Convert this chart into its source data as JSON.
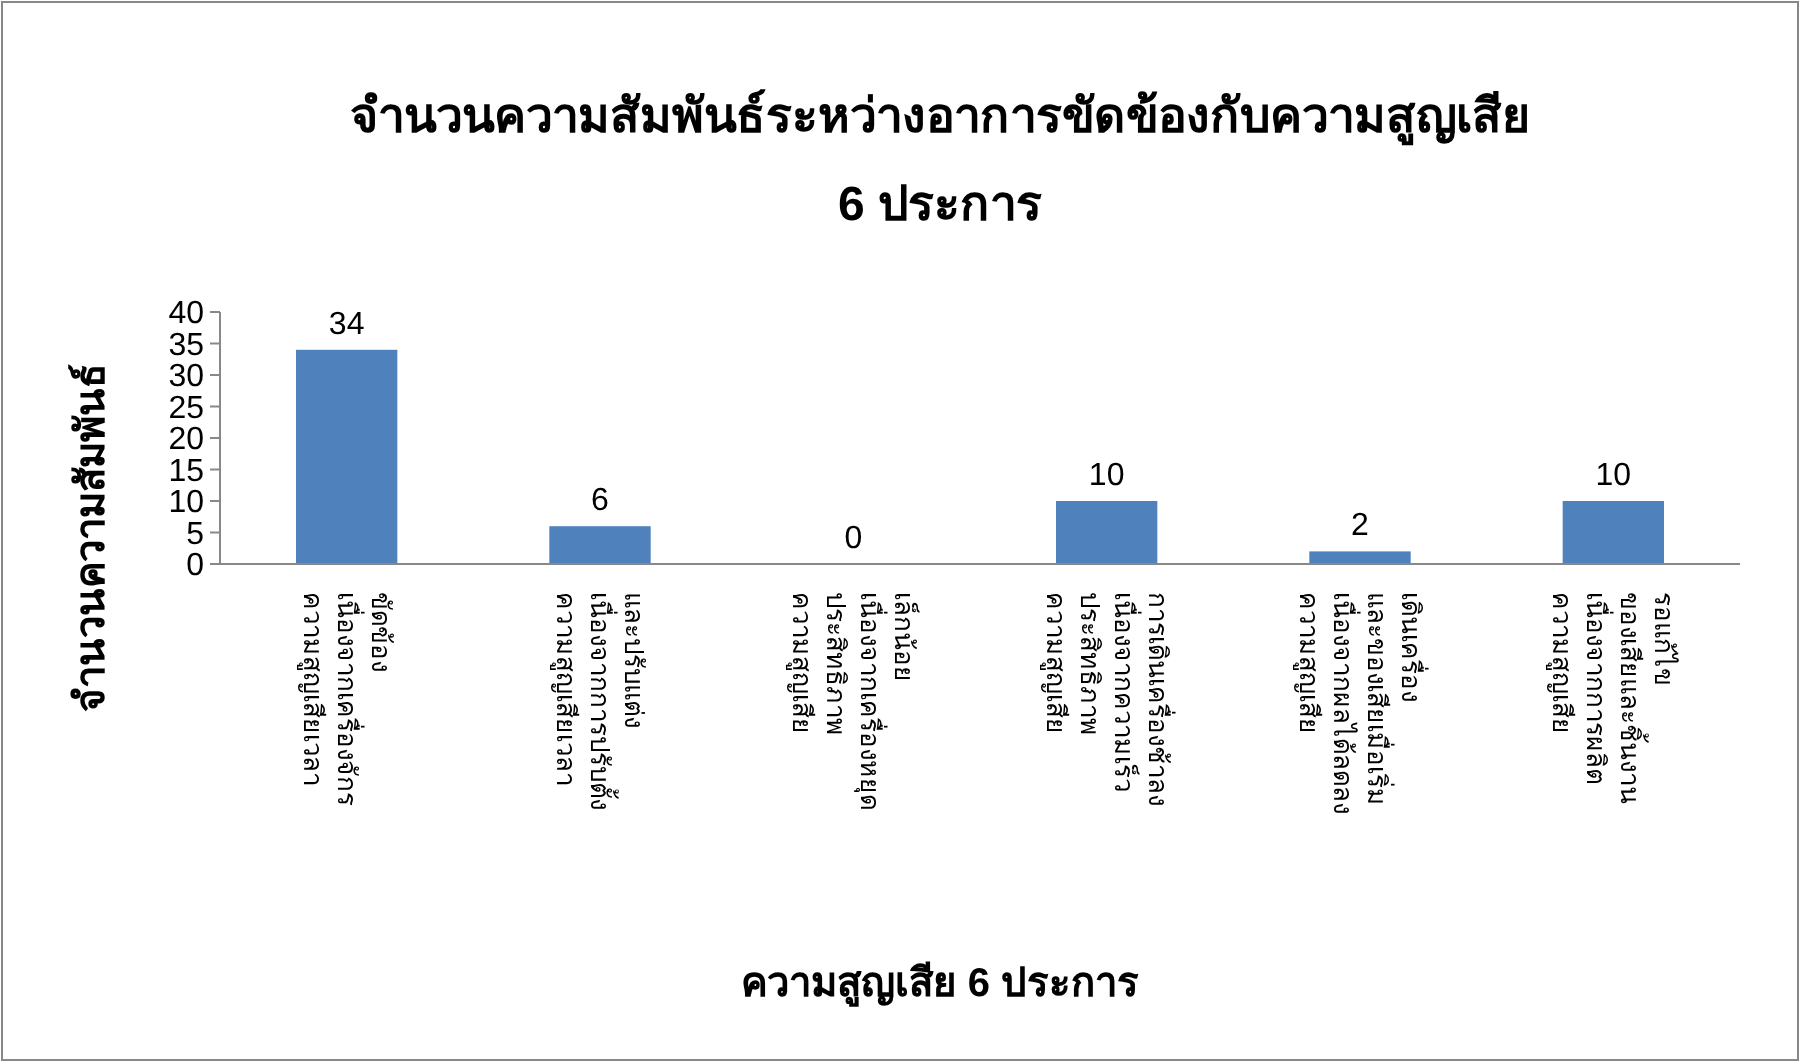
{
  "chart_data": {
    "type": "bar",
    "title": "จำนวนความสัมพันธ์ระหว่างอาการขัดข้องกับความสูญเสีย\n6 ประการ",
    "xlabel": "ความสูญเสีย 6 ประการ",
    "ylabel": "จำนวนความสัมพันธ์",
    "categories": [
      "ความสูญเสียเวลา\nเนื่องจากเครื่องจักร\nขัดข้อง",
      "ความสูญเสียเวลา\nเนื่องจากการปรับตั้ง\nและปรับแต่ง",
      "ความสูญเสีย\nประสิทธิภาพ\nเนื่องจากเครื่องหยุด\nเล็กน้อย",
      "ความสูญเสีย\nประสิทธิภาพ\nเนื่องจากความเร็ว\nการเดินเครื่องช้าลง",
      "ความสูญเสีย\nเนื่องจากผลได้ลดลง\nและของเสียเมื่อเริ่ม\nเดินเครื่อง",
      "ความสูญเสีย\nเนื่องจากการผลิต\nของเสียและชิ้นงาน\nรอแก้ไข"
    ],
    "values": [
      34,
      6,
      0,
      10,
      2,
      10
    ],
    "color": "#4f81bd",
    "ylim": [
      0,
      40
    ],
    "yticks": [
      0,
      5,
      10,
      15,
      20,
      25,
      30,
      35,
      40
    ],
    "grid": false,
    "data_labels": true
  }
}
